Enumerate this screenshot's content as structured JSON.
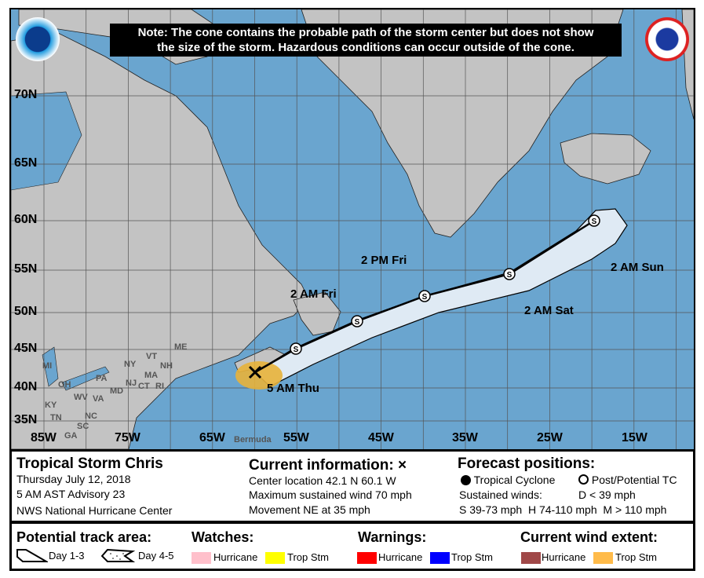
{
  "note": {
    "line1": "Note: The cone contains the probable path of the storm center but does not show",
    "line2": "the size of the storm. Hazardous conditions can occur outside of the cone."
  },
  "logos": {
    "left": "NOAA",
    "right": "NATIONAL WEATHER SERVICE"
  },
  "map": {
    "lat_labels": [
      "70N",
      "65N",
      "60N",
      "55N",
      "50N",
      "45N",
      "40N",
      "35N"
    ],
    "lon_labels": [
      "85W",
      "75W",
      "65W",
      "55W",
      "45W",
      "35W",
      "25W",
      "15W"
    ],
    "state_labels": [
      "ME",
      "MI",
      "NY",
      "VT",
      "NH",
      "MA",
      "CT",
      "RI",
      "PA",
      "OH",
      "WV",
      "VA",
      "KY",
      "NC",
      "TN",
      "SC",
      "GA",
      "MD",
      "NJ",
      "Bermuda"
    ],
    "track_labels": [
      "5 AM Thu",
      "2 AM Fri",
      "2 PM Fri",
      "2 AM Sat",
      "2 AM Sun"
    ],
    "forecast_symbol": "S",
    "colors": {
      "ocean": "#6aa5cf",
      "land": "#c3c3c3",
      "cone": "#dfeaf4",
      "wind_ts": "#e8b33a"
    }
  },
  "storm": {
    "title": "Tropical Storm Chris",
    "date": "Thursday July 12, 2018",
    "advisory": "5 AM AST Advisory 23",
    "center": "NWS National Hurricane Center"
  },
  "current": {
    "title": "Current information:",
    "marker": "×",
    "location": "Center location 42.1 N 60.1 W",
    "wind": "Maximum sustained wind 70 mph",
    "movement": "Movement NE at 35 mph"
  },
  "forecast": {
    "title": "Forecast positions:",
    "tc": "Tropical Cyclone",
    "ptc": "Post/Potential TC",
    "sustained": "Sustained winds:",
    "d": "D < 39 mph",
    "shm": "S 39-73 mph  H 74-110 mph  M > 110 mph"
  },
  "legend": {
    "track_title": "Potential track area:",
    "day13": "Day 1-3",
    "day45": "Day 4-5",
    "watches_title": "Watches:",
    "watch_hur": "Hurricane",
    "watch_ts": "Trop Stm",
    "warnings_title": "Warnings:",
    "warn_hur": "Hurricane",
    "warn_ts": "Trop Stm",
    "wind_title": "Current wind extent:",
    "wind_hur": "Hurricane",
    "wind_ts": "Trop Stm",
    "colors": {
      "watch_hur": "#ffc0cb",
      "watch_ts": "#ffff00",
      "warn_hur": "#ff0000",
      "warn_ts": "#0000ff",
      "wind_hur": "#a04848",
      "wind_ts": "#ffbb4a"
    }
  }
}
